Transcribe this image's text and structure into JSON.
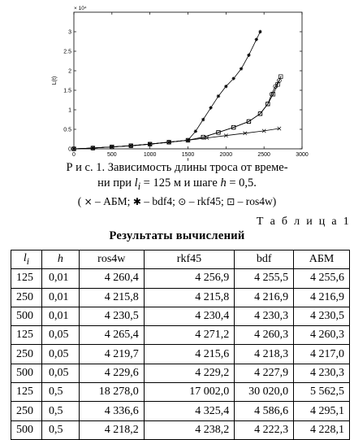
{
  "chart_data": {
    "type": "line",
    "title": "",
    "xlabel": "t",
    "ylabel": "L(t)",
    "xlim": [
      0,
      3000
    ],
    "ylim": [
      0,
      3.5
    ],
    "y_multiplier": "× 10⁴",
    "x_ticks": [
      "0",
      "500",
      "1000",
      "1500",
      "2000",
      "2500",
      "3000"
    ],
    "y_ticks": [
      "0",
      "0.5",
      "1",
      "1.5",
      "2",
      "2.5",
      "3"
    ],
    "series": [
      {
        "marker": "x",
        "x": [
          0,
          250,
          500,
          750,
          1000,
          1250,
          1500,
          1750,
          2000,
          2250,
          2500,
          2700
        ],
        "y": [
          0.0,
          0.02,
          0.05,
          0.08,
          0.12,
          0.17,
          0.22,
          0.28,
          0.34,
          0.4,
          0.46,
          0.52
        ]
      },
      {
        "marker": "star",
        "x": [
          0,
          250,
          500,
          750,
          1000,
          1250,
          1500,
          1600,
          1700,
          1800,
          1900,
          2000,
          2100,
          2200,
          2300,
          2400,
          2450
        ],
        "y": [
          0.0,
          0.02,
          0.05,
          0.08,
          0.12,
          0.17,
          0.22,
          0.45,
          0.75,
          1.05,
          1.35,
          1.6,
          1.8,
          2.05,
          2.4,
          2.8,
          3.0
        ]
      },
      {
        "marker": "circle",
        "x": [
          0,
          250,
          500,
          750,
          1000,
          1250,
          1500,
          1700,
          1900,
          2100,
          2300,
          2450,
          2550,
          2600,
          2650,
          2700
        ],
        "y": [
          0.0,
          0.02,
          0.05,
          0.08,
          0.12,
          0.17,
          0.22,
          0.3,
          0.42,
          0.55,
          0.7,
          0.9,
          1.15,
          1.4,
          1.6,
          1.75
        ]
      },
      {
        "marker": "square",
        "x": [
          0,
          250,
          500,
          750,
          1000,
          1250,
          1500,
          1700,
          1900,
          2100,
          2300,
          2450,
          2550,
          2620,
          2680,
          2720
        ],
        "y": [
          0.0,
          0.02,
          0.05,
          0.08,
          0.12,
          0.17,
          0.22,
          0.3,
          0.42,
          0.55,
          0.7,
          0.9,
          1.15,
          1.4,
          1.65,
          1.85
        ]
      }
    ]
  },
  "caption": {
    "line1": "Р и с. 1. Зависимость длины троса от време-",
    "line2_pre": "ни при ",
    "line2_var": "l",
    "line2_sub": "i",
    "line2_mid": " = 125 м и шаге ",
    "line2_h": "h",
    "line2_post": " = 0,5.",
    "legend_open": "(",
    "legend": [
      {
        "symbol": "×",
        "label": " – АБМ;"
      },
      {
        "symbol": "✱",
        "label": " – bdf4;"
      },
      {
        "symbol": "⊙",
        "label": " – rkf45;"
      },
      {
        "symbol": "⊡",
        "label": " – ros4w)"
      }
    ]
  },
  "table": {
    "number": "Т а б л и ц а 1",
    "title": "Результаты вычислений",
    "headers": [
      "l",
      "h",
      "ros4w",
      "rkf45",
      "bdf",
      "АБМ"
    ],
    "header_sub": "i",
    "rows": [
      [
        "125",
        "0,01",
        "4 260,4",
        "4 256,9",
        "4 255,5",
        "4 255,6"
      ],
      [
        "250",
        "0,01",
        "4 215,8",
        "4 215,8",
        "4 216,9",
        "4 216,9"
      ],
      [
        "500",
        "0,01",
        "4 230,5",
        "4 230,4",
        "4 230,3",
        "4 230,5"
      ],
      [
        "125",
        "0,05",
        "4 265,4",
        "4 271,2",
        "4 260,3",
        "4 260,3"
      ],
      [
        "250",
        "0,05",
        "4 219,7",
        "4 215,6",
        "4 218,3",
        "4 217,0"
      ],
      [
        "500",
        "0,05",
        "4 229,6",
        "4 229,2",
        "4 227,9",
        "4 230,3"
      ],
      [
        "125",
        "0,5",
        "18 278,0",
        "17 002,0",
        "30 020,0",
        "5 562,5"
      ],
      [
        "250",
        "0,5",
        "4 336,6",
        "4 325,4",
        "4 586,6",
        "4 295,1"
      ],
      [
        "500",
        "0,5",
        "4 218,2",
        "4 238,2",
        "4 222,3",
        "4 228,1"
      ]
    ]
  }
}
